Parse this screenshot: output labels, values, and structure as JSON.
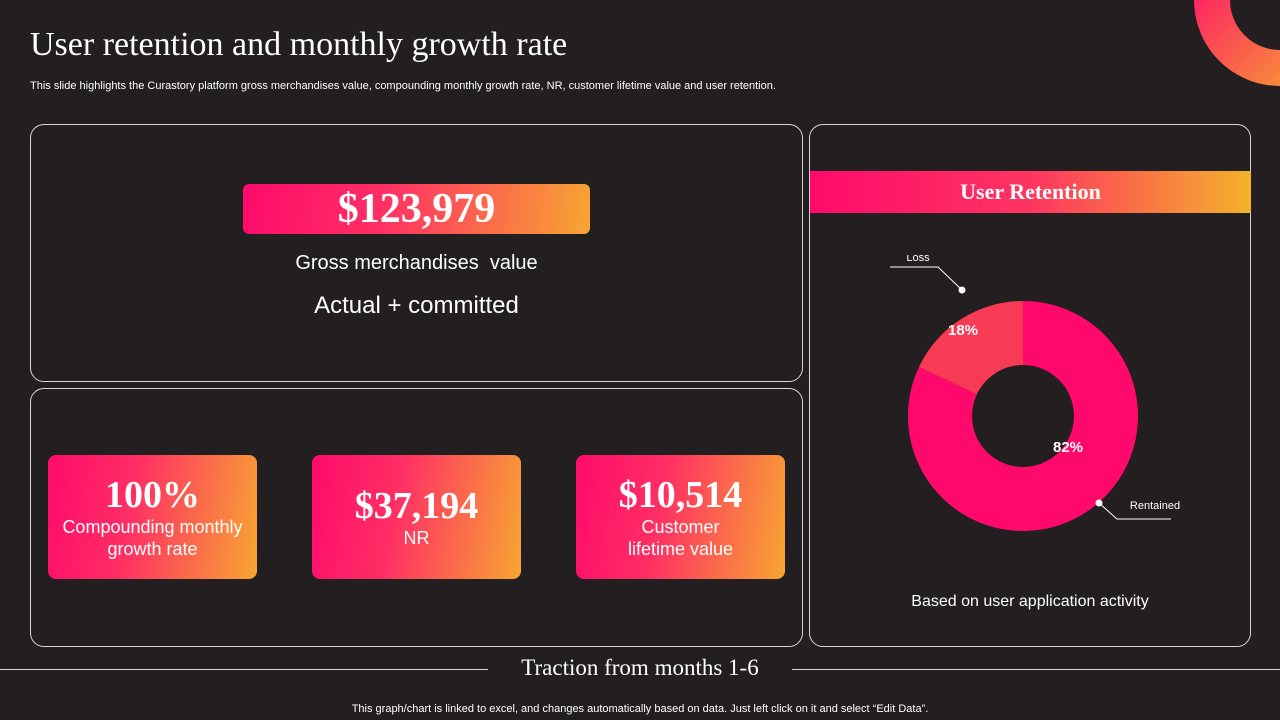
{
  "title": "User retention and monthly growth rate",
  "subtitle": "This slide highlights the Curastory platform gross merchandises value, compounding monthly growth rate, NR, customer lifetime value and user retention.",
  "gmv": {
    "value": "$123,979",
    "label": "Gross merchandises  value",
    "note": "Actual + committed"
  },
  "metrics": [
    {
      "value": "100%",
      "label_lines": [
        "Compounding monthly",
        "growth rate"
      ]
    },
    {
      "value": "$37,194",
      "label_lines": [
        "NR"
      ]
    },
    {
      "value": "$10,514",
      "label_lines": [
        "Customer",
        "lifetime value"
      ]
    }
  ],
  "retention": {
    "title": "User Retention",
    "note": "Based on user application activity"
  },
  "chart_data": {
    "type": "pie",
    "donut": true,
    "categories": [
      "Loss",
      "Rentained"
    ],
    "values": [
      18,
      82
    ],
    "data_labels": [
      "18%",
      "82%"
    ],
    "colors": [
      "#f73b55",
      "#ff0a6c"
    ]
  },
  "traction_title": "Traction from months 1-6",
  "footer": "This graph/chart is linked to excel,  and changes automatically based on data. Just left click on it and select “Edit Data”.",
  "colors": {
    "background": "#231f20",
    "accent_pink": "#ff0a6c",
    "accent_orange": "#f7a632"
  }
}
